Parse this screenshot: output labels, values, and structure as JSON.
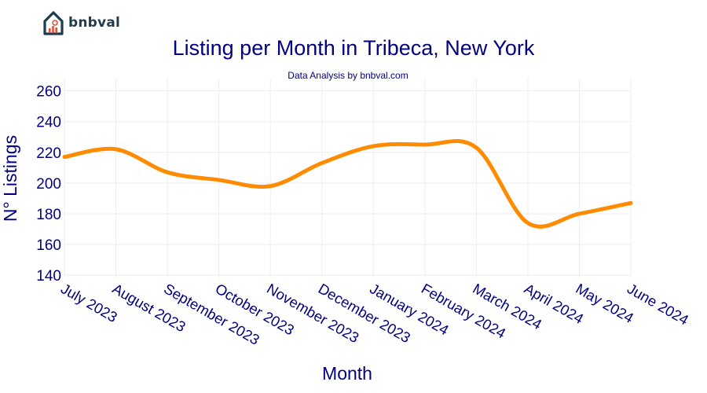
{
  "brand": {
    "name": "bnbval"
  },
  "chart_data": {
    "type": "line",
    "title": "Listing per Month in Tribeca, New York",
    "subtitle": "Data Analysis by bnbval.com",
    "xlabel": "Month",
    "ylabel": "N° Listings",
    "categories": [
      "July 2023",
      "August 2023",
      "September 2023",
      "October 2023",
      "November 2023",
      "December 2023",
      "January 2024",
      "February 2024",
      "March 2024",
      "April 2024",
      "May 2024",
      "June 2024"
    ],
    "series": [
      {
        "name": "Listings",
        "values": [
          217,
          222,
          207,
          202,
          198,
          213,
          224,
          225,
          223,
          174,
          180,
          187
        ]
      }
    ],
    "ylim": [
      138,
      268
    ],
    "yticks": [
      140,
      160,
      180,
      200,
      220,
      240,
      260
    ],
    "grid": true,
    "legend": "none",
    "colors": {
      "line": "#ff8c00",
      "text": "#000080",
      "grid": "#eeeeee"
    }
  }
}
